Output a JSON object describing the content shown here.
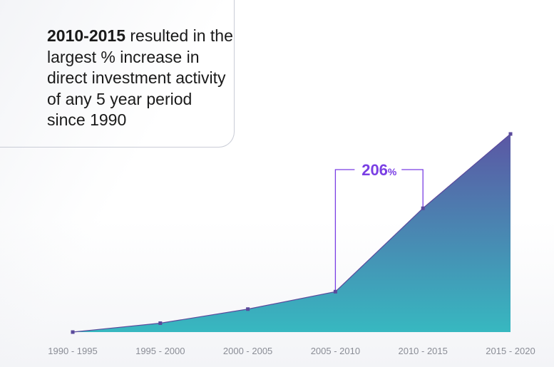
{
  "headline": {
    "bold": "2010-2015",
    "rest": " resulted in the largest % increase in direct investment activity of any 5 year period since 1990"
  },
  "callout": {
    "value": "206",
    "unit": "%"
  },
  "colors": {
    "accent": "#7a3fe4",
    "line": "#5a4a9c",
    "area_top": "#5b57a4",
    "area_bottom": "#37b8c0",
    "tick_text": "#8a8d96"
  },
  "chart_data": {
    "type": "area",
    "categories": [
      "1990 - 1995",
      "1995 - 2000",
      "2000 - 2005",
      "2005 - 2010",
      "2010 - 2015",
      "2015 - 2020"
    ],
    "values": [
      0,
      4.5,
      11.6,
      20.4,
      62.5,
      100
    ],
    "ylim": [
      0,
      100
    ],
    "grid": false,
    "annotation": {
      "text": "206%",
      "from_category": "2005 - 2010",
      "to_category": "2010 - 2015"
    }
  }
}
